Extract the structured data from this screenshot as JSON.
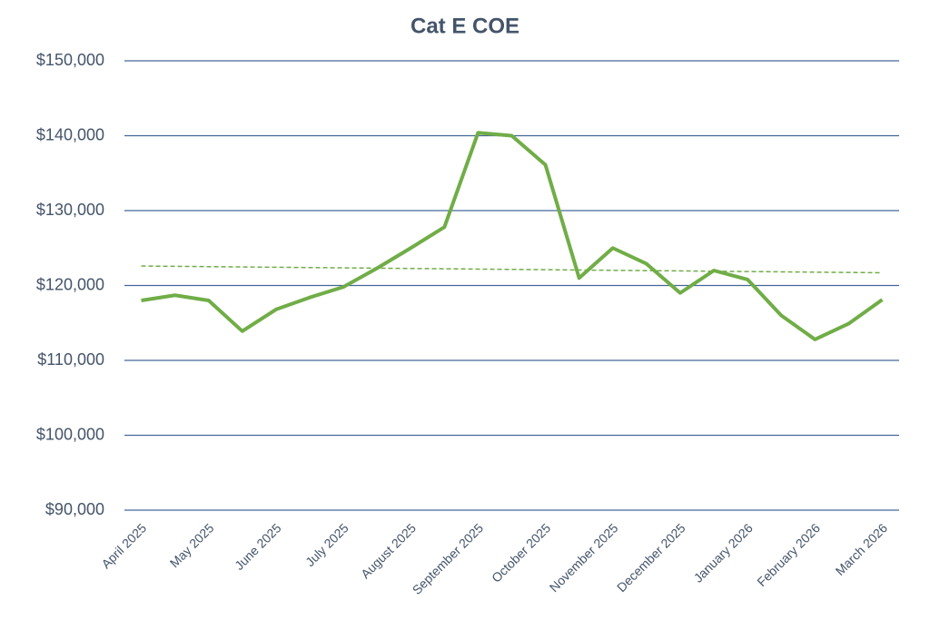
{
  "chart_data": {
    "type": "line",
    "title": "Cat E COE",
    "categories": [
      "April 2025",
      null,
      "May 2025",
      null,
      "June 2025",
      null,
      "July 2025",
      null,
      "August 2025",
      null,
      "September 2025",
      null,
      "October 2025",
      null,
      "November 2025",
      null,
      "December 2025",
      null,
      "January 2026",
      null,
      "February 2026",
      null,
      "March 2026"
    ],
    "values": [
      118000,
      118700,
      118000,
      113900,
      116800,
      118400,
      119800,
      122300,
      125000,
      127800,
      140400,
      140000,
      136100,
      121000,
      125000,
      122900,
      119000,
      122000,
      120800,
      116000,
      112800,
      114900,
      118100
    ],
    "color": "#70ad47",
    "trendline": {
      "start": 122600,
      "end": 121700,
      "color": "#70ad47",
      "dashed": true
    },
    "ylim": [
      90000,
      150000
    ],
    "yticks": [
      {
        "value": 90000,
        "label": "$90,000"
      },
      {
        "value": 100000,
        "label": "$100,000"
      },
      {
        "value": 110000,
        "label": "$110,000"
      },
      {
        "value": 120000,
        "label": "$120,000"
      },
      {
        "value": 130000,
        "label": "$130,000"
      },
      {
        "value": 140000,
        "label": "$140,000"
      },
      {
        "value": 150000,
        "label": "$150,000"
      }
    ],
    "grid": true
  }
}
